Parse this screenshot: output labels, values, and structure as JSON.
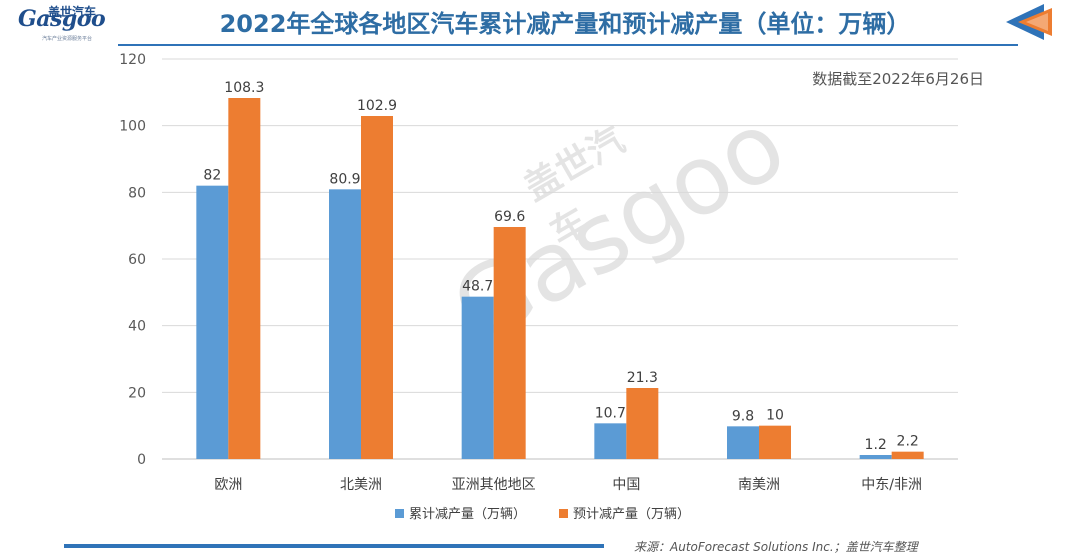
{
  "header": {
    "logo_cn": "盖世汽车",
    "logo_word": "Gasgoo",
    "logo_tagline": "汽车产业资源服务平台",
    "title": "2022年全球各地区汽车累计减产量和预计减产量（单位：万辆）"
  },
  "asof": "数据截至2022年6月26日",
  "watermark": {
    "cn": "盖世汽车",
    "en": "Gasgoo"
  },
  "source": "来源：AutoForecast Solutions Inc.；盖世汽车整理",
  "colors": {
    "series1": "#5b9bd5",
    "series2": "#ed7d31",
    "title": "#2e6da4",
    "grid": "#d9d9d9",
    "accent": "#2f73b8"
  },
  "chart_data": {
    "type": "bar",
    "categories": [
      "欧洲",
      "北美洲",
      "亚洲其他地区",
      "中国",
      "南美洲",
      "中东/非洲"
    ],
    "series": [
      {
        "name": "累计减产量（万辆）",
        "values": [
          82,
          80.9,
          48.7,
          10.7,
          9.8,
          1.2
        ],
        "labels": [
          "82",
          "80.9",
          "48.7",
          "10.7",
          "9.8",
          "1.2"
        ]
      },
      {
        "name": "预计减产量（万辆）",
        "values": [
          108.3,
          102.9,
          69.6,
          21.3,
          10,
          2.2
        ],
        "labels": [
          "108.3",
          "102.9",
          "69.6",
          "21.3",
          "10",
          "2.2"
        ]
      }
    ],
    "ylim": [
      0,
      120
    ],
    "yticks": [
      0,
      20,
      40,
      60,
      80,
      100,
      120
    ],
    "grid": true,
    "legend": "bottom"
  }
}
